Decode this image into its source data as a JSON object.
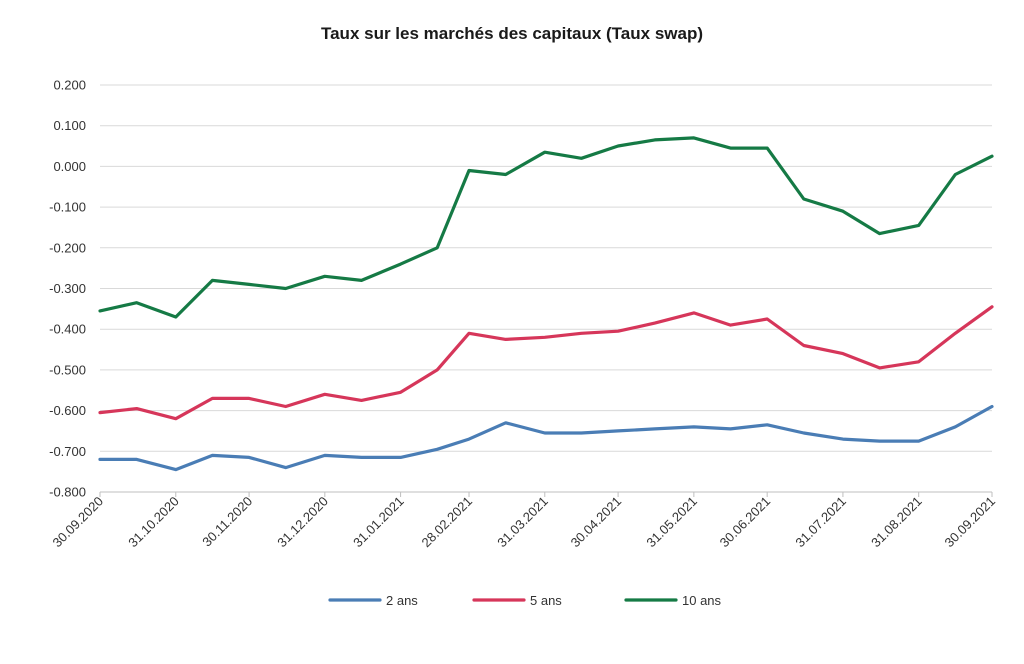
{
  "chart_data": {
    "type": "line",
    "title": "Taux sur les marchés des capitaux (Taux swap)",
    "xlabel": "",
    "ylabel": "",
    "x_start": "30.09.2020",
    "x_end": "30.09.2021",
    "x_tick_labels": [
      "30.09.2020",
      "31.10.2020",
      "30.11.2020",
      "31.12.2020",
      "31.01.2021",
      "28.02.2021",
      "31.03.2021",
      "30.04.2021",
      "31.05.2021",
      "30.06.2021",
      "31.07.2021",
      "31.08.2021",
      "30.09.2021"
    ],
    "y_tick_labels": [
      "0.200",
      "0.100",
      "0.000",
      "-0.100",
      "-0.200",
      "-0.300",
      "-0.400",
      "-0.500",
      "-0.600",
      "-0.700",
      "-0.800"
    ],
    "ylim": [
      -0.8,
      0.2
    ],
    "grid": "horizontal",
    "legend_position": "bottom",
    "x": [
      "30.09.2020",
      "15.10.2020",
      "31.10.2020",
      "15.11.2020",
      "30.11.2020",
      "15.12.2020",
      "31.12.2020",
      "15.01.2021",
      "31.01.2021",
      "15.02.2021",
      "28.02.2021",
      "15.03.2021",
      "31.03.2021",
      "15.04.2021",
      "30.04.2021",
      "15.05.2021",
      "31.05.2021",
      "15.06.2021",
      "30.06.2021",
      "15.07.2021",
      "31.07.2021",
      "15.08.2021",
      "31.08.2021",
      "15.09.2021",
      "30.09.2021"
    ],
    "series": [
      {
        "name": "2 ans",
        "color": "#4a7db5",
        "values": [
          -0.72,
          -0.72,
          -0.745,
          -0.71,
          -0.715,
          -0.74,
          -0.71,
          -0.715,
          -0.715,
          -0.695,
          -0.67,
          -0.63,
          -0.655,
          -0.655,
          -0.65,
          -0.645,
          -0.64,
          -0.645,
          -0.635,
          -0.655,
          -0.67,
          -0.675,
          -0.675,
          -0.64,
          -0.59
        ]
      },
      {
        "name": "5 ans",
        "color": "#d6365a",
        "values": [
          -0.605,
          -0.595,
          -0.62,
          -0.57,
          -0.57,
          -0.59,
          -0.56,
          -0.575,
          -0.555,
          -0.5,
          -0.41,
          -0.425,
          -0.42,
          -0.41,
          -0.405,
          -0.385,
          -0.36,
          -0.39,
          -0.375,
          -0.44,
          -0.46,
          -0.495,
          -0.48,
          -0.41,
          -0.345
        ]
      },
      {
        "name": "10 ans",
        "color": "#157a45",
        "values": [
          -0.355,
          -0.335,
          -0.37,
          -0.28,
          -0.29,
          -0.3,
          -0.27,
          -0.28,
          -0.24,
          -0.2,
          -0.01,
          -0.02,
          0.035,
          0.02,
          0.05,
          0.065,
          0.07,
          0.045,
          0.045,
          -0.08,
          -0.11,
          -0.165,
          -0.145,
          -0.02,
          0.025
        ]
      }
    ]
  }
}
